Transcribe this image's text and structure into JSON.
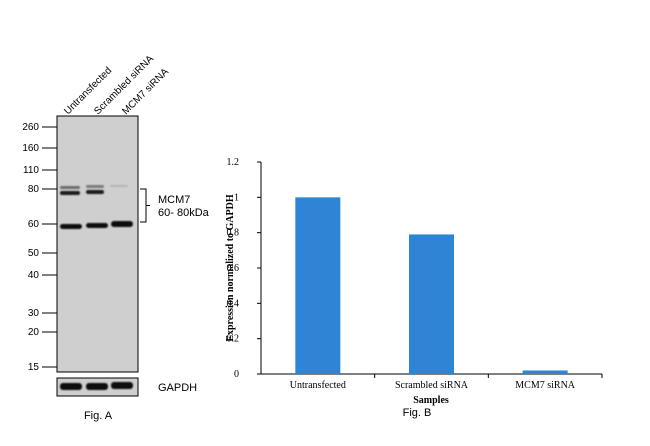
{
  "figure_a": {
    "caption": "Fig. A",
    "lane_labels": [
      "Untransfected",
      "Scrambled siRNA",
      "MCM7 siRNA"
    ],
    "mw_markers": [
      "260",
      "160",
      "110",
      "80",
      "60",
      "50",
      "40",
      "30",
      "20",
      "15"
    ],
    "band_label_line1": "MCM7",
    "band_label_line2": "60- 80kDa",
    "loading_control_label": "GAPDH"
  },
  "figure_b": {
    "caption": "Fig. B"
  },
  "chart_data": {
    "type": "bar",
    "title": "",
    "categories": [
      "Untransfected",
      "Scrambled siRNA",
      "MCM7 siRNA"
    ],
    "values": [
      1.0,
      0.79,
      0.02
    ],
    "xlabel": "Samples",
    "ylabel": "Expression normalized to GAPDH",
    "ylim": [
      0,
      1.2
    ],
    "yticks": [
      "0",
      "0.2",
      "0.4",
      "0.6",
      "0.8",
      "1",
      "1.2"
    ],
    "bar_color": "#2e85d6",
    "legend": "none",
    "grid": false
  }
}
